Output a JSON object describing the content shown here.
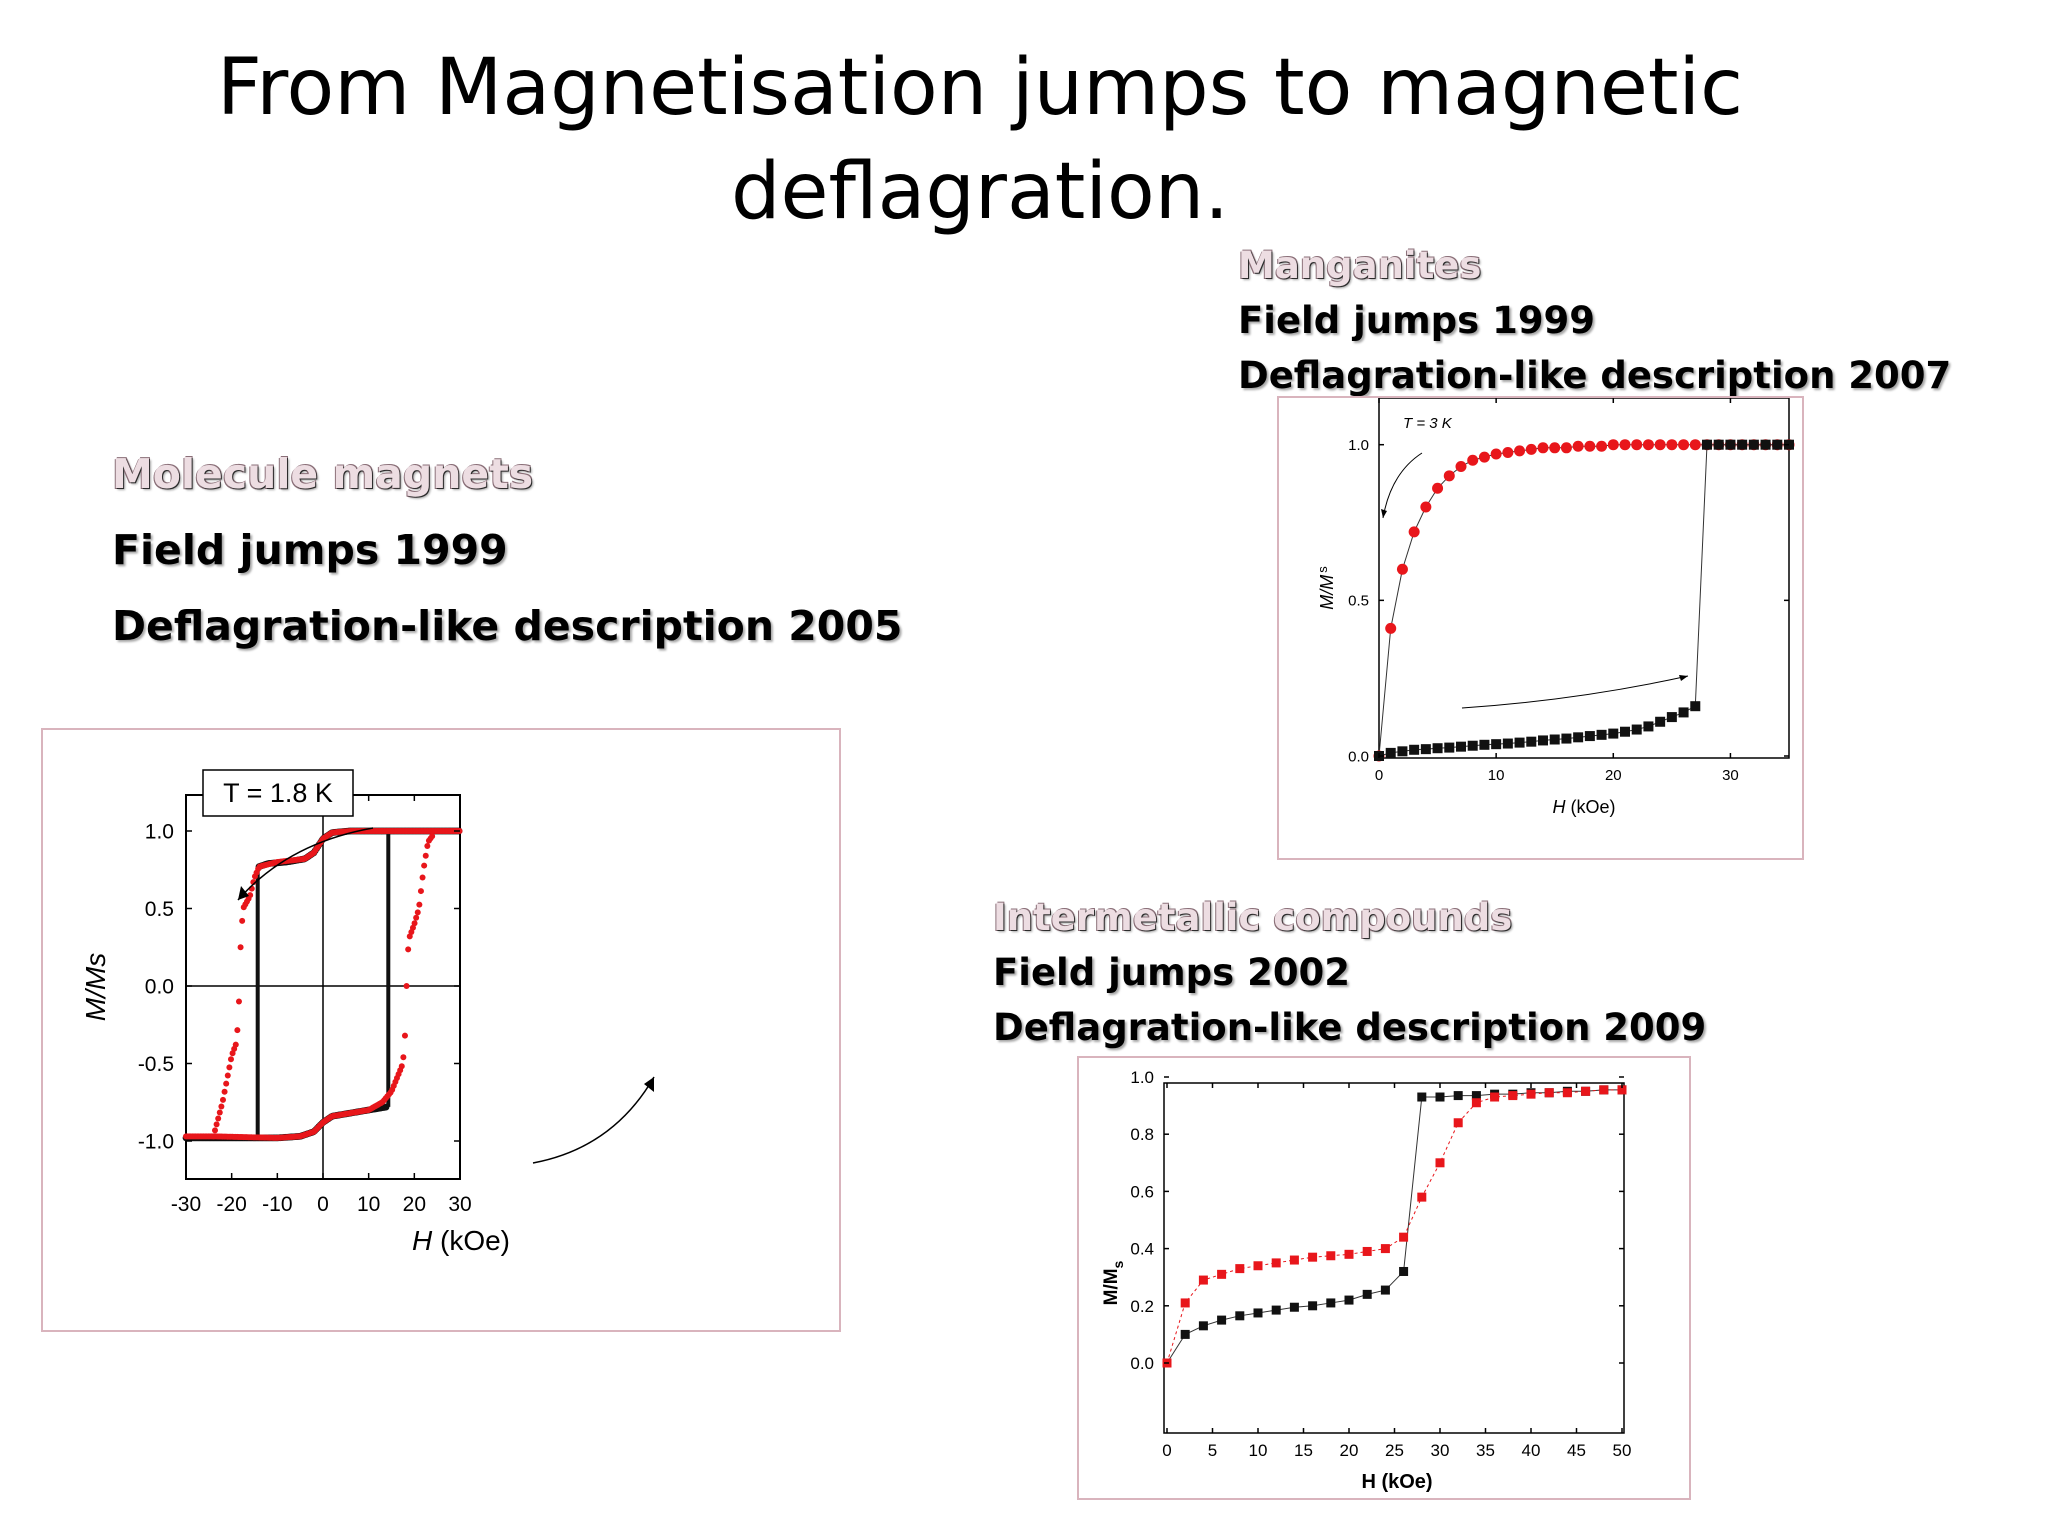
{
  "slide": {
    "title_line1": "From Magnetisation jumps to magnetic",
    "title_line2": "deflagration."
  },
  "sections": {
    "molecule": {
      "heading": "Molecule magnets",
      "line1": "Field jumps 1999",
      "line2": "Deflagration-like description 2005"
    },
    "manganites": {
      "heading": "Manganites",
      "line1": "Field jumps 1999",
      "line2": "Deflagration-like description 2007"
    },
    "intermetallic": {
      "heading": "Intermetallic compounds",
      "line1": "Field jumps 2002",
      "line2": "Deflagration-like description 2009"
    }
  },
  "colors": {
    "red_series": "#e8161b",
    "black_series": "#111111",
    "frame_border": "#d9b4bd",
    "heading": "#eddde2"
  },
  "chart_data": [
    {
      "id": "molecule-magnets",
      "type": "line",
      "annotation": "T = 1.8 K",
      "xlabel_italic": "H",
      "xlabel_unit": " (kOe)",
      "ylabel": "M/Ms",
      "xlim": [
        -30,
        30
      ],
      "ylim": [
        -1.2,
        1.25
      ],
      "xticks": [
        "-30",
        "-20",
        "-10",
        "0",
        "10",
        "20",
        "30"
      ],
      "xtick_values": [
        -30,
        -20,
        -10,
        0,
        10,
        20,
        30
      ],
      "yticks": [
        "1.0",
        "0.5",
        "0.0",
        "-0.5",
        "-1.0"
      ],
      "ytick_values": [
        1.0,
        0.5,
        0.0,
        -0.5,
        -1.0
      ],
      "series": [
        {
          "color": "#111111",
          "upper": [
            [
              -14,
              0.77
            ],
            [
              -12,
              0.79
            ],
            [
              -8,
              0.8
            ],
            [
              -4,
              0.82
            ],
            [
              -2,
              0.86
            ],
            [
              0,
              0.95
            ],
            [
              2,
              0.99
            ],
            [
              6,
              1.0
            ],
            [
              30,
              1.0
            ]
          ],
          "lower": [
            [
              -30,
              -0.98
            ],
            [
              -10,
              -0.98
            ],
            [
              -5,
              -0.97
            ],
            [
              -2,
              -0.94
            ],
            [
              0,
              -0.88
            ],
            [
              2,
              -0.84
            ],
            [
              6,
              -0.82
            ],
            [
              10,
              -0.8
            ],
            [
              14,
              -0.78
            ]
          ],
          "jumps": [
            [
              -14.3,
              0.77,
              -0.98
            ],
            [
              14.3,
              -0.78,
              0.98
            ]
          ]
        },
        {
          "color": "#e8161b",
          "upper": [
            [
              -24,
              -0.97
            ],
            [
              -22,
              -0.75
            ],
            [
              -20,
              -0.45
            ],
            [
              -19,
              -0.37
            ],
            [
              -18.5,
              -0.2
            ],
            [
              -18,
              0.3
            ],
            [
              -17.5,
              0.5
            ],
            [
              -16,
              0.58
            ],
            [
              -15,
              0.7
            ],
            [
              -14,
              0.77
            ],
            [
              -10,
              0.8
            ],
            [
              -4,
              0.82
            ],
            [
              -2,
              0.86
            ],
            [
              0,
              0.95
            ],
            [
              2,
              0.99
            ],
            [
              6,
              1.0
            ],
            [
              30,
              1.0
            ]
          ],
          "lower": [
            [
              -30,
              -0.97
            ],
            [
              -24,
              -0.97
            ],
            [
              -10,
              -0.98
            ],
            [
              -5,
              -0.97
            ],
            [
              -2,
              -0.94
            ],
            [
              0,
              -0.88
            ],
            [
              2,
              -0.84
            ],
            [
              6,
              -0.82
            ],
            [
              10,
              -0.8
            ],
            [
              13,
              -0.75
            ],
            [
              15,
              -0.68
            ],
            [
              17.5,
              -0.5
            ],
            [
              18,
              -0.3
            ],
            [
              18.5,
              0.2
            ],
            [
              19,
              0.32
            ],
            [
              20,
              0.4
            ],
            [
              21,
              0.5
            ],
            [
              22,
              0.75
            ],
            [
              23,
              0.93
            ],
            [
              24,
              0.97
            ],
            [
              30,
              0.97
            ]
          ]
        }
      ]
    },
    {
      "id": "manganites",
      "type": "scatter",
      "annotation": "T = 3 K",
      "xlabel_italic": "H",
      "xlabel_unit": " (kOe)",
      "ylabel_italic": "M/M",
      "ylabel_sub": "s",
      "xlim": [
        0,
        35
      ],
      "ylim": [
        0,
        1.15
      ],
      "xticks": [
        "0",
        "10",
        "20",
        "30"
      ],
      "xtick_values": [
        0,
        10,
        20,
        30
      ],
      "yticks": [
        "0.0",
        "0.5",
        "1.0"
      ],
      "ytick_values": [
        0,
        0.5,
        1.0
      ],
      "series": [
        {
          "color": "#e8161b",
          "x": [
            0,
            1,
            2,
            3,
            4,
            5,
            6,
            7,
            8,
            9,
            10,
            11,
            12,
            13,
            14,
            15,
            16,
            17,
            18,
            19,
            20,
            21,
            22,
            23,
            24,
            25,
            26,
            27,
            28,
            29,
            30,
            31,
            32,
            33,
            34,
            35
          ],
          "y": [
            0.0,
            0.41,
            0.6,
            0.72,
            0.8,
            0.86,
            0.9,
            0.93,
            0.95,
            0.96,
            0.97,
            0.975,
            0.98,
            0.985,
            0.99,
            0.99,
            0.99,
            0.995,
            0.995,
            0.995,
            1.0,
            1.0,
            1.0,
            1.0,
            1.0,
            1.0,
            1.0,
            1.0,
            1.0,
            1.0,
            1.0,
            1.0,
            1.0,
            1.0,
            1.0,
            1.0
          ]
        },
        {
          "color": "#111111",
          "x": [
            0,
            1,
            2,
            3,
            4,
            5,
            6,
            7,
            8,
            9,
            10,
            11,
            12,
            13,
            14,
            15,
            16,
            17,
            18,
            19,
            20,
            21,
            22,
            23,
            24,
            25,
            26,
            27,
            28,
            29,
            30,
            31,
            32,
            33,
            34,
            35
          ],
          "y": [
            0.0,
            0.01,
            0.015,
            0.02,
            0.022,
            0.025,
            0.027,
            0.03,
            0.033,
            0.036,
            0.038,
            0.04,
            0.043,
            0.046,
            0.05,
            0.053,
            0.056,
            0.06,
            0.064,
            0.068,
            0.072,
            0.078,
            0.085,
            0.095,
            0.11,
            0.125,
            0.14,
            0.16,
            1.0,
            1.0,
            1.0,
            1.0,
            1.0,
            1.0,
            1.0,
            1.0
          ]
        }
      ]
    },
    {
      "id": "intermetallic",
      "type": "scatter",
      "xlabel": "H (kOe)",
      "ylabel": "M/M",
      "ylabel_sub": "s",
      "xlim": [
        0,
        50
      ],
      "ylim": [
        -0.05,
        1.05
      ],
      "xticks": [
        "0",
        "5",
        "10",
        "15",
        "20",
        "25",
        "30",
        "35",
        "40",
        "45",
        "50"
      ],
      "xtick_values": [
        0,
        5,
        10,
        15,
        20,
        25,
        30,
        35,
        40,
        45,
        50
      ],
      "yticks": [
        "0.0",
        "0.2",
        "0.4",
        "0.6",
        "0.8",
        "1.0"
      ],
      "ytick_values": [
        0,
        0.2,
        0.4,
        0.6,
        0.8,
        1.0
      ],
      "series": [
        {
          "color": "#111111",
          "x": [
            0,
            2,
            4,
            6,
            8,
            10,
            12,
            14,
            16,
            18,
            20,
            22,
            24,
            26,
            28,
            30,
            32,
            34,
            36,
            38,
            40,
            42,
            44,
            46,
            48,
            50
          ],
          "y": [
            0.0,
            0.1,
            0.13,
            0.15,
            0.165,
            0.175,
            0.185,
            0.195,
            0.2,
            0.21,
            0.22,
            0.24,
            0.255,
            0.32,
            0.93,
            0.93,
            0.935,
            0.935,
            0.94,
            0.94,
            0.945,
            0.945,
            0.95,
            0.95,
            0.955,
            0.955
          ]
        },
        {
          "color": "#e8161b",
          "x": [
            0,
            2,
            4,
            6,
            8,
            10,
            12,
            14,
            16,
            18,
            20,
            22,
            24,
            26,
            28,
            30,
            32,
            34,
            36,
            38,
            40,
            42,
            44,
            46,
            48,
            50
          ],
          "y": [
            0.0,
            0.21,
            0.29,
            0.31,
            0.33,
            0.34,
            0.35,
            0.36,
            0.37,
            0.375,
            0.38,
            0.39,
            0.4,
            0.44,
            0.58,
            0.7,
            0.84,
            0.91,
            0.93,
            0.935,
            0.94,
            0.945,
            0.945,
            0.95,
            0.955,
            0.955
          ]
        }
      ]
    }
  ]
}
